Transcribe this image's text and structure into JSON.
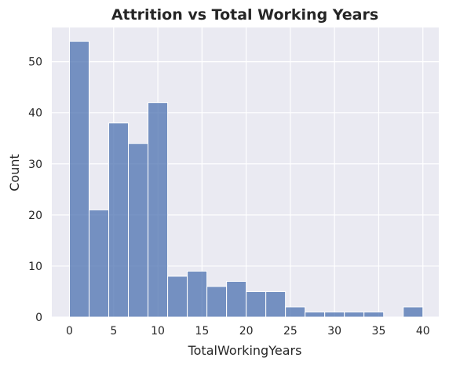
{
  "chart_data": {
    "type": "bar",
    "title": "Attrition vs Total Working Years",
    "xlabel": "TotalWorkingYears",
    "ylabel": "Count",
    "bin_edges": [
      0,
      2.222,
      4.444,
      6.667,
      8.889,
      11.111,
      13.333,
      15.556,
      17.778,
      20,
      22.222,
      24.444,
      26.667,
      28.889,
      31.111,
      33.333,
      35.556,
      37.778,
      40
    ],
    "values": [
      54,
      21,
      38,
      34,
      42,
      8,
      9,
      6,
      7,
      5,
      5,
      2,
      1,
      1,
      1,
      1,
      0,
      2
    ],
    "xlim": [
      -2,
      41.8
    ],
    "ylim": [
      0,
      56.7
    ],
    "x_ticks": [
      0,
      5,
      10,
      15,
      20,
      25,
      30,
      35,
      40
    ],
    "y_ticks": [
      0,
      10,
      20,
      30,
      40,
      50
    ],
    "grid": true,
    "bar_color": "#4c72b0",
    "background": "#eaeaf2"
  }
}
